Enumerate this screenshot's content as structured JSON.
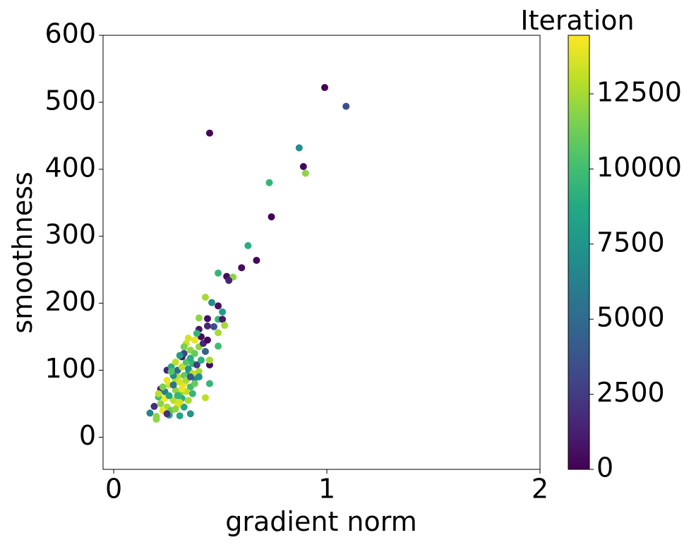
{
  "chart_data": {
    "type": "scatter",
    "xlabel": "gradient norm",
    "ylabel": "smoothness",
    "colorbar_label": "Iteration",
    "colormap": "viridis",
    "xlim": [
      -0.05,
      2
    ],
    "xticks": [
      0,
      1,
      2
    ],
    "ylim": [
      -48,
      600
    ],
    "yticks": [
      0,
      100,
      200,
      300,
      400,
      500,
      600
    ],
    "clim": [
      0,
      14450
    ],
    "cticks": [
      0,
      2500,
      5000,
      7500,
      10000,
      12500
    ],
    "x": [
      0.99,
      1.09,
      0.45,
      0.87,
      0.89,
      0.9,
      0.73,
      0.74,
      0.63,
      0.67,
      0.6,
      0.49,
      0.53,
      0.56,
      0.54,
      0.43,
      0.46,
      0.49,
      0.51,
      0.4,
      0.44,
      0.49,
      0.51,
      0.52,
      0.44,
      0.47,
      0.49,
      0.4,
      0.49,
      0.45,
      0.45,
      0.45,
      0.43,
      0.36,
      0.31,
      0.26,
      0.17,
      0.2,
      0.2,
      0.19,
      0.22,
      0.25,
      0.27,
      0.29,
      0.3,
      0.32,
      0.33,
      0.34,
      0.36,
      0.38,
      0.37,
      0.35,
      0.33,
      0.31,
      0.28,
      0.25,
      0.23,
      0.21,
      0.24,
      0.26,
      0.28,
      0.3,
      0.32,
      0.34,
      0.36,
      0.38,
      0.4,
      0.41,
      0.39,
      0.42,
      0.4,
      0.38,
      0.36,
      0.34,
      0.32,
      0.3,
      0.27,
      0.25,
      0.22,
      0.24,
      0.26,
      0.29,
      0.31,
      0.33,
      0.35,
      0.37,
      0.39,
      0.41,
      0.43,
      0.44,
      0.35,
      0.33,
      0.31,
      0.29,
      0.27,
      0.25,
      0.23,
      0.21,
      0.28,
      0.3,
      0.32,
      0.34,
      0.36,
      0.38,
      0.4,
      0.37,
      0.35,
      0.33,
      0.31,
      0.29
    ],
    "values": [
      522,
      494,
      454,
      432,
      404,
      394,
      380,
      329,
      286,
      264,
      253,
      245,
      240,
      239,
      234,
      209,
      201,
      196,
      187,
      178,
      177,
      176,
      176,
      167,
      166,
      165,
      156,
      161,
      136,
      108,
      115,
      80,
      59,
      35,
      32,
      33,
      36,
      31,
      27,
      46,
      72,
      100,
      105,
      86,
      90,
      120,
      125,
      140,
      130,
      145,
      110,
      95,
      80,
      65,
      55,
      45,
      40,
      60,
      68,
      78,
      92,
      100,
      105,
      112,
      118,
      125,
      135,
      150,
      155,
      140,
      98,
      88,
      75,
      68,
      58,
      48,
      40,
      35,
      50,
      58,
      62,
      70,
      82,
      92,
      102,
      95,
      108,
      115,
      128,
      145,
      148,
      135,
      122,
      112,
      98,
      85,
      75,
      65,
      78,
      62,
      72,
      85,
      90,
      80,
      90,
      65,
      55,
      45,
      52,
      42
    ],
    "color_values": [
      0,
      3500,
      200,
      7000,
      300,
      12000,
      9500,
      100,
      9000,
      200,
      500,
      9500,
      400,
      12000,
      1500,
      12500,
      7000,
      700,
      8000,
      12000,
      600,
      9500,
      1000,
      12500,
      1500,
      3500,
      12500,
      1000,
      10000,
      500,
      12500,
      9500,
      13000,
      7500,
      8500,
      8000,
      6500,
      12000,
      12000,
      2000,
      1000,
      1500,
      9000,
      12500,
      13000,
      700,
      3000,
      13500,
      12000,
      14000,
      9500,
      8000,
      14000,
      11500,
      13000,
      12500,
      14000,
      10000,
      6000,
      13500,
      7000,
      5000,
      13000,
      10500,
      9000,
      11000,
      12000,
      500,
      9500,
      1500,
      12500,
      6500,
      10000,
      13000,
      9000,
      14000,
      11000,
      2000,
      12000,
      14400,
      8500,
      12000,
      13500,
      11000,
      7500,
      13000,
      2500,
      9000,
      4500,
      300,
      13500,
      11500,
      8000,
      13000,
      10500,
      14000,
      11500,
      13000,
      5500,
      9500,
      14000,
      12500,
      4000,
      11000,
      7000,
      9500,
      12500,
      8500,
      13500,
      12000
    ]
  }
}
